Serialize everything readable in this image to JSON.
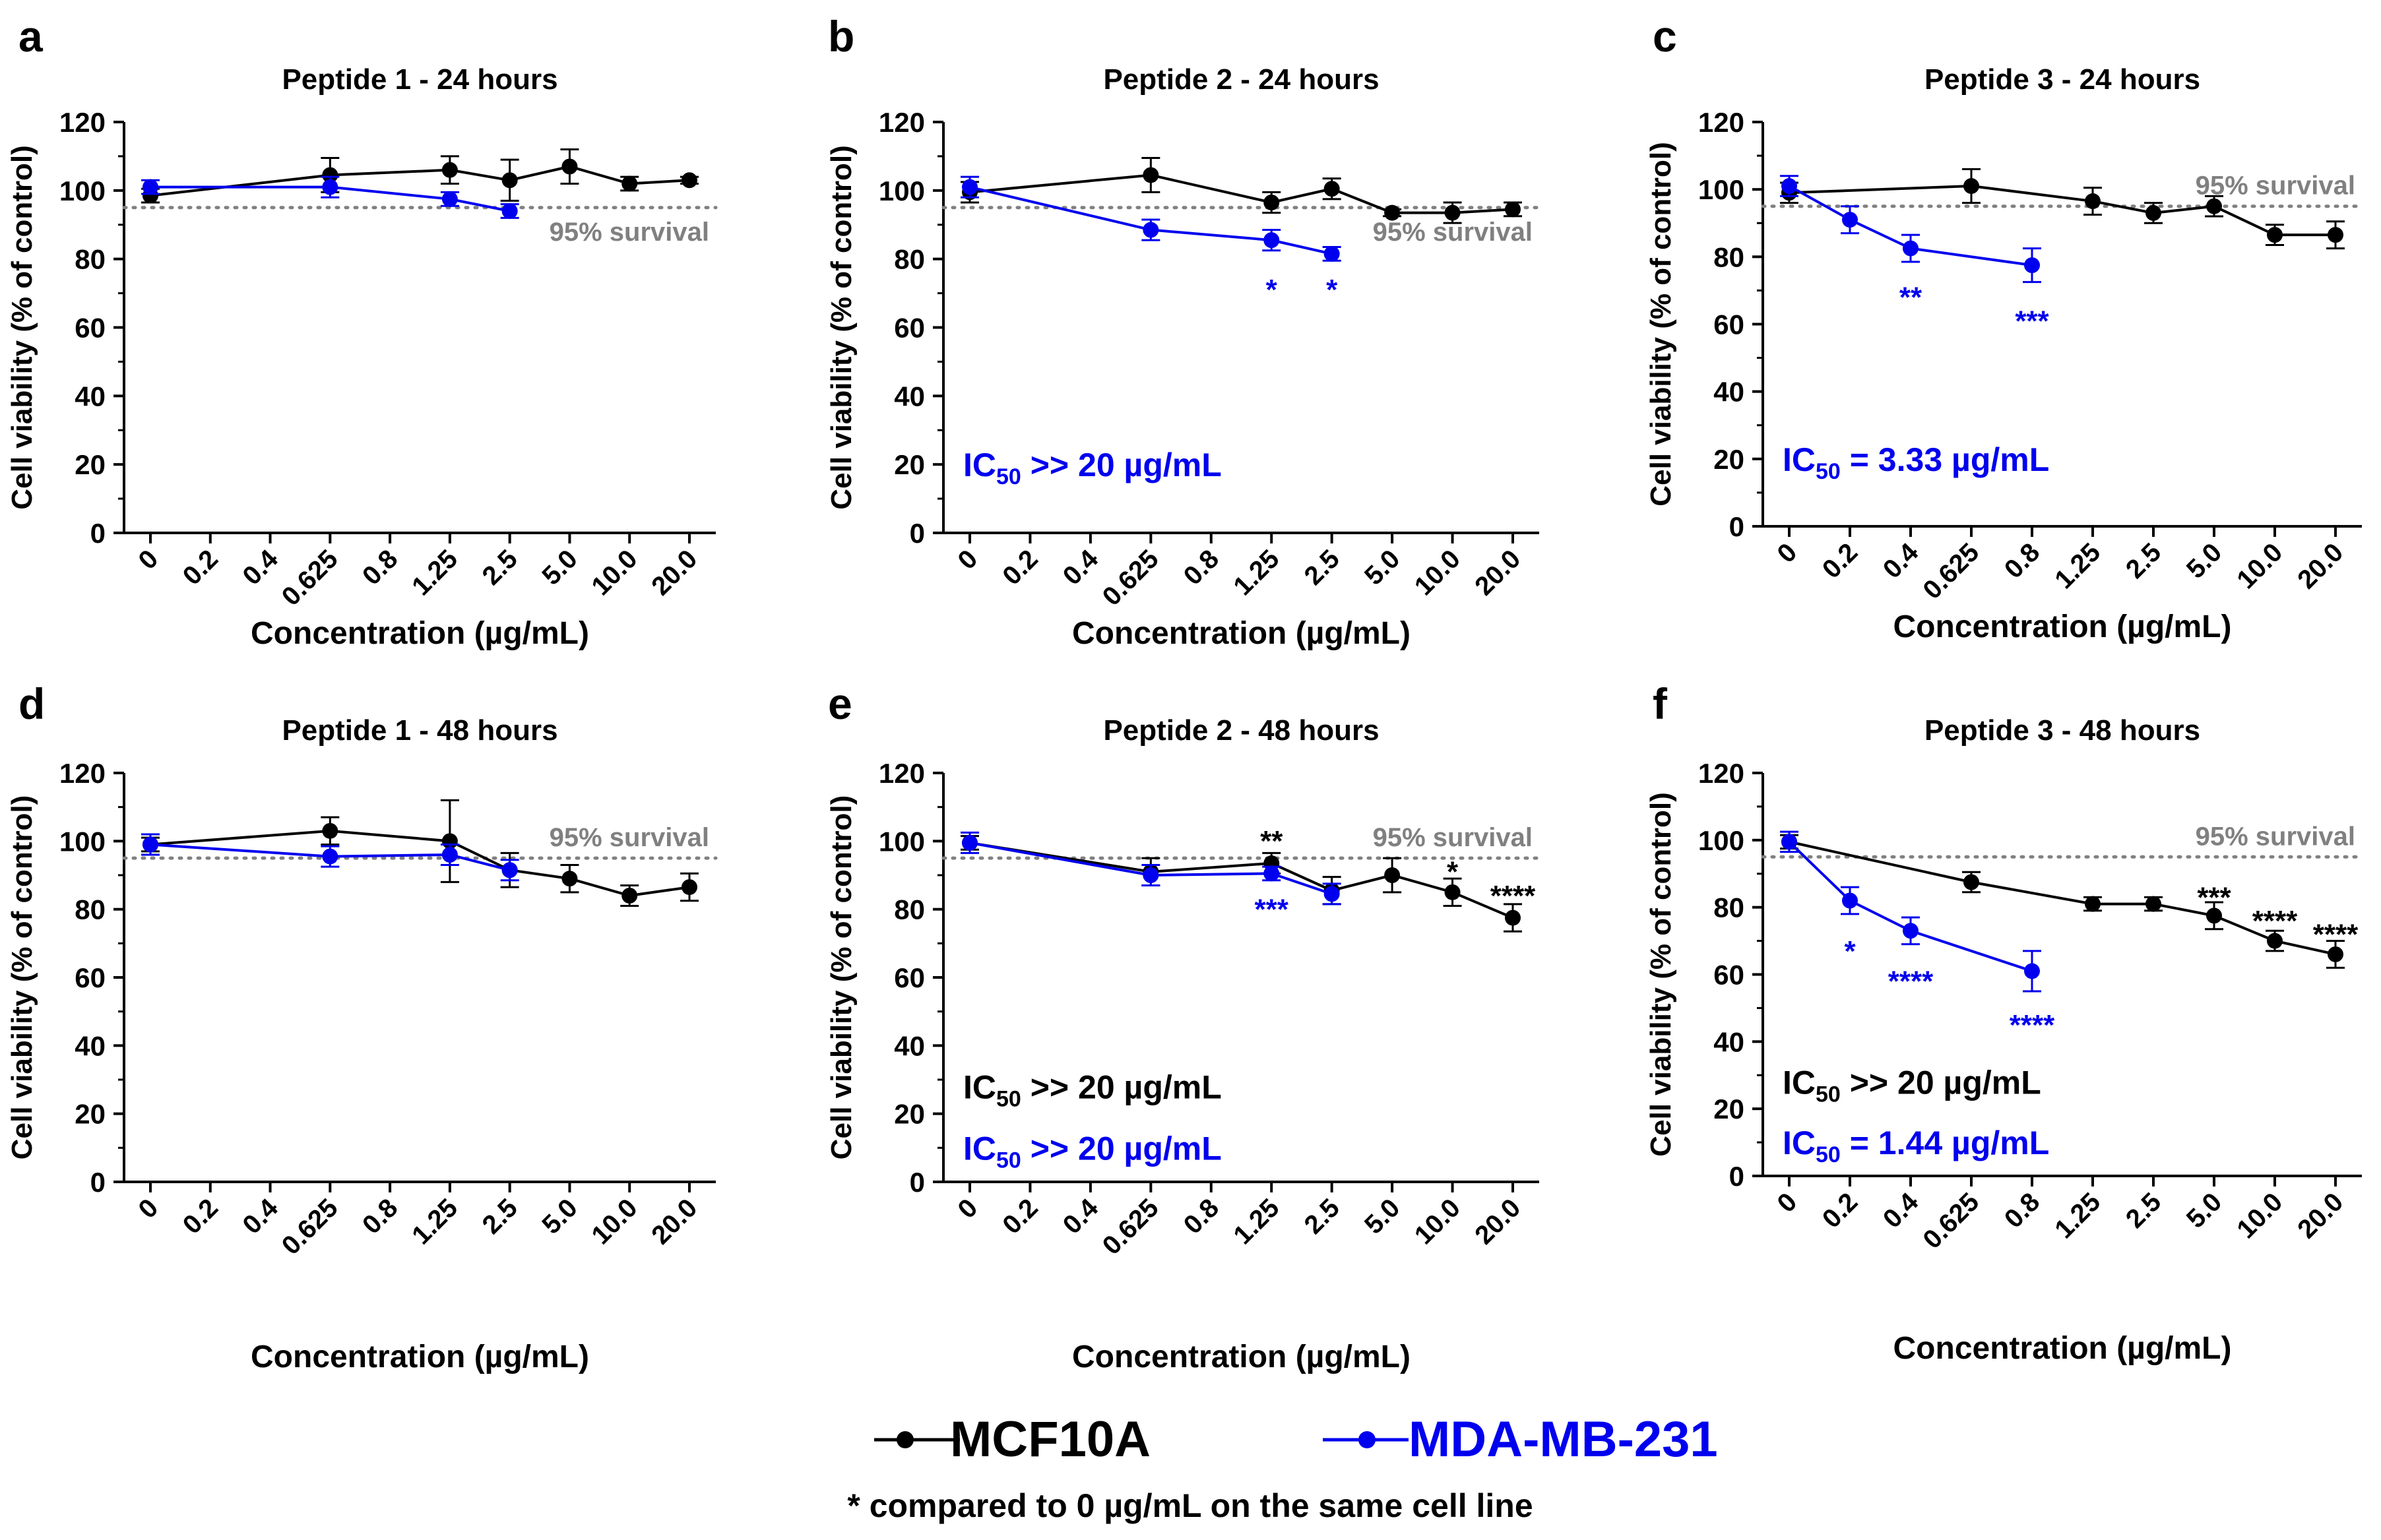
{
  "figure": {
    "legend": {
      "entries": [
        {
          "name": "MCF10A",
          "color": "#000000"
        },
        {
          "name": "MDA-MB-231",
          "color": "#0000EE"
        }
      ],
      "footnote": "* compared to 0 µg/mL on the same cell line"
    },
    "colors": {
      "mcf": "#000000",
      "mda": "#0000EE",
      "threshold": "#808080"
    }
  },
  "chart_data": [
    {
      "type": "line",
      "panel_label": "a",
      "title": "Peptide 1 - 24 hours",
      "xlabel": "Concentration (µg/mL)",
      "ylabel": "Cell viability (% of control)",
      "categories": [
        "0",
        "0.2",
        "0.4",
        "0.625",
        "0.8",
        "1.25",
        "2.5",
        "5.0",
        "10.0",
        "20.0"
      ],
      "ylim": [
        0,
        120
      ],
      "yticks": [
        0,
        20,
        40,
        60,
        80,
        100,
        120
      ],
      "threshold": {
        "value": 95,
        "label": "95% survival"
      },
      "series": [
        {
          "name": "MCF10A",
          "points": [
            [
              0,
              98.5,
              2
            ],
            [
              3,
              104.5,
              5
            ],
            [
              5,
              106,
              4
            ],
            [
              6,
              103,
              6
            ],
            [
              7,
              107,
              5
            ],
            [
              8,
              102,
              2
            ],
            [
              9,
              103,
              1
            ]
          ]
        },
        {
          "name": "MDA-MB-231",
          "points": [
            [
              0,
              101,
              2
            ],
            [
              3,
              101,
              3
            ],
            [
              5,
              97.5,
              2
            ],
            [
              6,
              94,
              2
            ]
          ]
        }
      ],
      "annotations": [],
      "ic50": []
    },
    {
      "type": "line",
      "panel_label": "b",
      "title": "Peptide 2 - 24 hours",
      "xlabel": "Concentration (µg/mL)",
      "ylabel": "Cell viability (% of control)",
      "categories": [
        "0",
        "0.2",
        "0.4",
        "0.625",
        "0.8",
        "1.25",
        "2.5",
        "5.0",
        "10.0",
        "20.0"
      ],
      "ylim": [
        0,
        120
      ],
      "yticks": [
        0,
        20,
        40,
        60,
        80,
        100,
        120
      ],
      "threshold": {
        "value": 95,
        "label": "95% survival"
      },
      "series": [
        {
          "name": "MCF10A",
          "points": [
            [
              0,
              99.5,
              3
            ],
            [
              3,
              104.5,
              5
            ],
            [
              5,
              96.5,
              3
            ],
            [
              6,
              100.5,
              3
            ],
            [
              7,
              93.5,
              1
            ],
            [
              8,
              93.5,
              3
            ],
            [
              9,
              94.5,
              2
            ]
          ]
        },
        {
          "name": "MDA-MB-231",
          "points": [
            [
              0,
              101,
              3
            ],
            [
              3,
              88.5,
              3
            ],
            [
              5,
              85.5,
              3
            ],
            [
              6,
              81.5,
              2
            ]
          ]
        }
      ],
      "annotations": [
        {
          "text": "*",
          "series": "MDA-MB-231",
          "x": 5,
          "y": 72
        },
        {
          "text": "*",
          "series": "MDA-MB-231",
          "x": 6,
          "y": 72
        }
      ],
      "ic50": [
        {
          "prefix": "IC",
          "sub": "50",
          "suffix": " >> 20 µg/mL",
          "series": "MDA-MB-231"
        }
      ]
    },
    {
      "type": "line",
      "panel_label": "c",
      "title": "Peptide 3 - 24 hours",
      "xlabel": "Concentration (µg/mL)",
      "ylabel": "Cell viability (% of control)",
      "categories": [
        "0",
        "0.2",
        "0.4",
        "0.625",
        "0.8",
        "1.25",
        "2.5",
        "5.0",
        "10.0",
        "20.0"
      ],
      "ylim": [
        0,
        120
      ],
      "yticks": [
        0,
        20,
        40,
        60,
        80,
        100,
        120
      ],
      "threshold": {
        "value": 95,
        "label": "95% survival"
      },
      "series": [
        {
          "name": "MCF10A",
          "points": [
            [
              0,
              99,
              3
            ],
            [
              3,
              101,
              5
            ],
            [
              5,
              96.5,
              4
            ],
            [
              6,
              93,
              3
            ],
            [
              7,
              95,
              3
            ],
            [
              8,
              86.5,
              3
            ],
            [
              9,
              86.5,
              4
            ]
          ]
        },
        {
          "name": "MDA-MB-231",
          "points": [
            [
              0,
              101,
              3
            ],
            [
              1,
              91,
              4
            ],
            [
              2,
              82.5,
              4
            ],
            [
              4,
              77.5,
              5
            ]
          ]
        }
      ],
      "annotations": [
        {
          "text": "**",
          "series": "MDA-MB-231",
          "x": 2,
          "y": 69
        },
        {
          "text": "***",
          "series": "MDA-MB-231",
          "x": 4,
          "y": 62
        }
      ],
      "ic50": [
        {
          "prefix": "IC",
          "sub": "50",
          "suffix": " = 3.33 µg/mL",
          "series": "MDA-MB-231"
        }
      ]
    },
    {
      "type": "line",
      "panel_label": "d",
      "title": "Peptide 1 - 48 hours",
      "xlabel": "Concentration (µg/mL)",
      "ylabel": "Cell viability (% of control)",
      "categories": [
        "0",
        "0.2",
        "0.4",
        "0.625",
        "0.8",
        "1.25",
        "2.5",
        "5.0",
        "10.0",
        "20.0"
      ],
      "ylim": [
        0,
        120
      ],
      "yticks": [
        0,
        20,
        40,
        60,
        80,
        100,
        120
      ],
      "threshold": {
        "value": 95,
        "label": "95% survival"
      },
      "series": [
        {
          "name": "MCF10A",
          "points": [
            [
              0,
              99,
              2
            ],
            [
              3,
              103,
              4
            ],
            [
              5,
              100,
              12
            ],
            [
              6,
              91.5,
              5
            ],
            [
              7,
              89,
              4
            ],
            [
              8,
              84,
              3
            ],
            [
              9,
              86.5,
              4
            ]
          ]
        },
        {
          "name": "MDA-MB-231",
          "points": [
            [
              0,
              99,
              3
            ],
            [
              3,
              95.5,
              3
            ],
            [
              5,
              96,
              3
            ],
            [
              6,
              91.5,
              3
            ]
          ]
        }
      ],
      "annotations": [],
      "ic50": []
    },
    {
      "type": "line",
      "panel_label": "e",
      "title": "Peptide 2 - 48 hours",
      "xlabel": "Concentration (µg/mL)",
      "ylabel": "Cell viability (% of control)",
      "categories": [
        "0",
        "0.2",
        "0.4",
        "0.625",
        "0.8",
        "1.25",
        "2.5",
        "5.0",
        "10.0",
        "20.0"
      ],
      "ylim": [
        0,
        120
      ],
      "yticks": [
        0,
        20,
        40,
        60,
        80,
        100,
        120
      ],
      "threshold": {
        "value": 95,
        "label": "95% survival"
      },
      "series": [
        {
          "name": "MCF10A",
          "points": [
            [
              0,
              99.5,
              2
            ],
            [
              3,
              91,
              4
            ],
            [
              5,
              93.5,
              3
            ],
            [
              6,
              85.5,
              4
            ],
            [
              7,
              90,
              5
            ],
            [
              8,
              85,
              4
            ],
            [
              9,
              77.5,
              4
            ]
          ]
        },
        {
          "name": "MDA-MB-231",
          "points": [
            [
              0,
              99.5,
              3
            ],
            [
              3,
              90,
              3
            ],
            [
              5,
              90.5,
              2
            ],
            [
              6,
              84.5,
              3
            ]
          ]
        }
      ],
      "annotations": [
        {
          "text": "**",
          "series": "MCF10A",
          "x": 5,
          "y": 101
        },
        {
          "text": "***",
          "series": "MDA-MB-231",
          "x": 5,
          "y": 81
        },
        {
          "text": "*",
          "series": "MCF10A",
          "x": 8,
          "y": 92
        },
        {
          "text": "****",
          "series": "MCF10A",
          "x": 9,
          "y": 85
        }
      ],
      "ic50": [
        {
          "prefix": "IC",
          "sub": "50",
          "suffix": " >> 20 µg/mL",
          "series": "MCF10A"
        },
        {
          "prefix": "IC",
          "sub": "50",
          "suffix": " >> 20 µg/mL",
          "series": "MDA-MB-231"
        }
      ]
    },
    {
      "type": "line",
      "panel_label": "f",
      "title": "Peptide 3 - 48 hours",
      "xlabel": "Concentration (µg/mL)",
      "ylabel": "Cell viability (% of control)",
      "categories": [
        "0",
        "0.2",
        "0.4",
        "0.625",
        "0.8",
        "1.25",
        "2.5",
        "5.0",
        "10.0",
        "20.0"
      ],
      "ylim": [
        0,
        120
      ],
      "yticks": [
        0,
        20,
        40,
        60,
        80,
        100,
        120
      ],
      "threshold": {
        "value": 95,
        "label": "95% survival"
      },
      "series": [
        {
          "name": "MCF10A",
          "points": [
            [
              0,
              99.5,
              2
            ],
            [
              3,
              87.5,
              3
            ],
            [
              5,
              81,
              2
            ],
            [
              6,
              81,
              2
            ],
            [
              7,
              77.5,
              4
            ],
            [
              8,
              70,
              3
            ],
            [
              9,
              66,
              4
            ]
          ]
        },
        {
          "name": "MDA-MB-231",
          "points": [
            [
              0,
              99.5,
              3
            ],
            [
              1,
              82,
              4
            ],
            [
              2,
              73,
              4
            ],
            [
              4,
              61,
              6
            ]
          ]
        }
      ],
      "annotations": [
        {
          "text": "*",
          "series": "MDA-MB-231",
          "x": 1,
          "y": 68
        },
        {
          "text": "****",
          "series": "MDA-MB-231",
          "x": 2,
          "y": 59
        },
        {
          "text": "****",
          "series": "MDA-MB-231",
          "x": 4,
          "y": 46
        },
        {
          "text": "***",
          "series": "MCF10A",
          "x": 7,
          "y": 84
        },
        {
          "text": "****",
          "series": "MCF10A",
          "x": 8,
          "y": 77
        },
        {
          "text": "****",
          "series": "MCF10A",
          "x": 9,
          "y": 73
        }
      ],
      "ic50": [
        {
          "prefix": "IC",
          "sub": "50",
          "suffix": " >> 20 µg/mL",
          "series": "MCF10A"
        },
        {
          "prefix": "IC",
          "sub": "50",
          "suffix": " = 1.44 µg/mL",
          "series": "MDA-MB-231"
        }
      ]
    }
  ]
}
